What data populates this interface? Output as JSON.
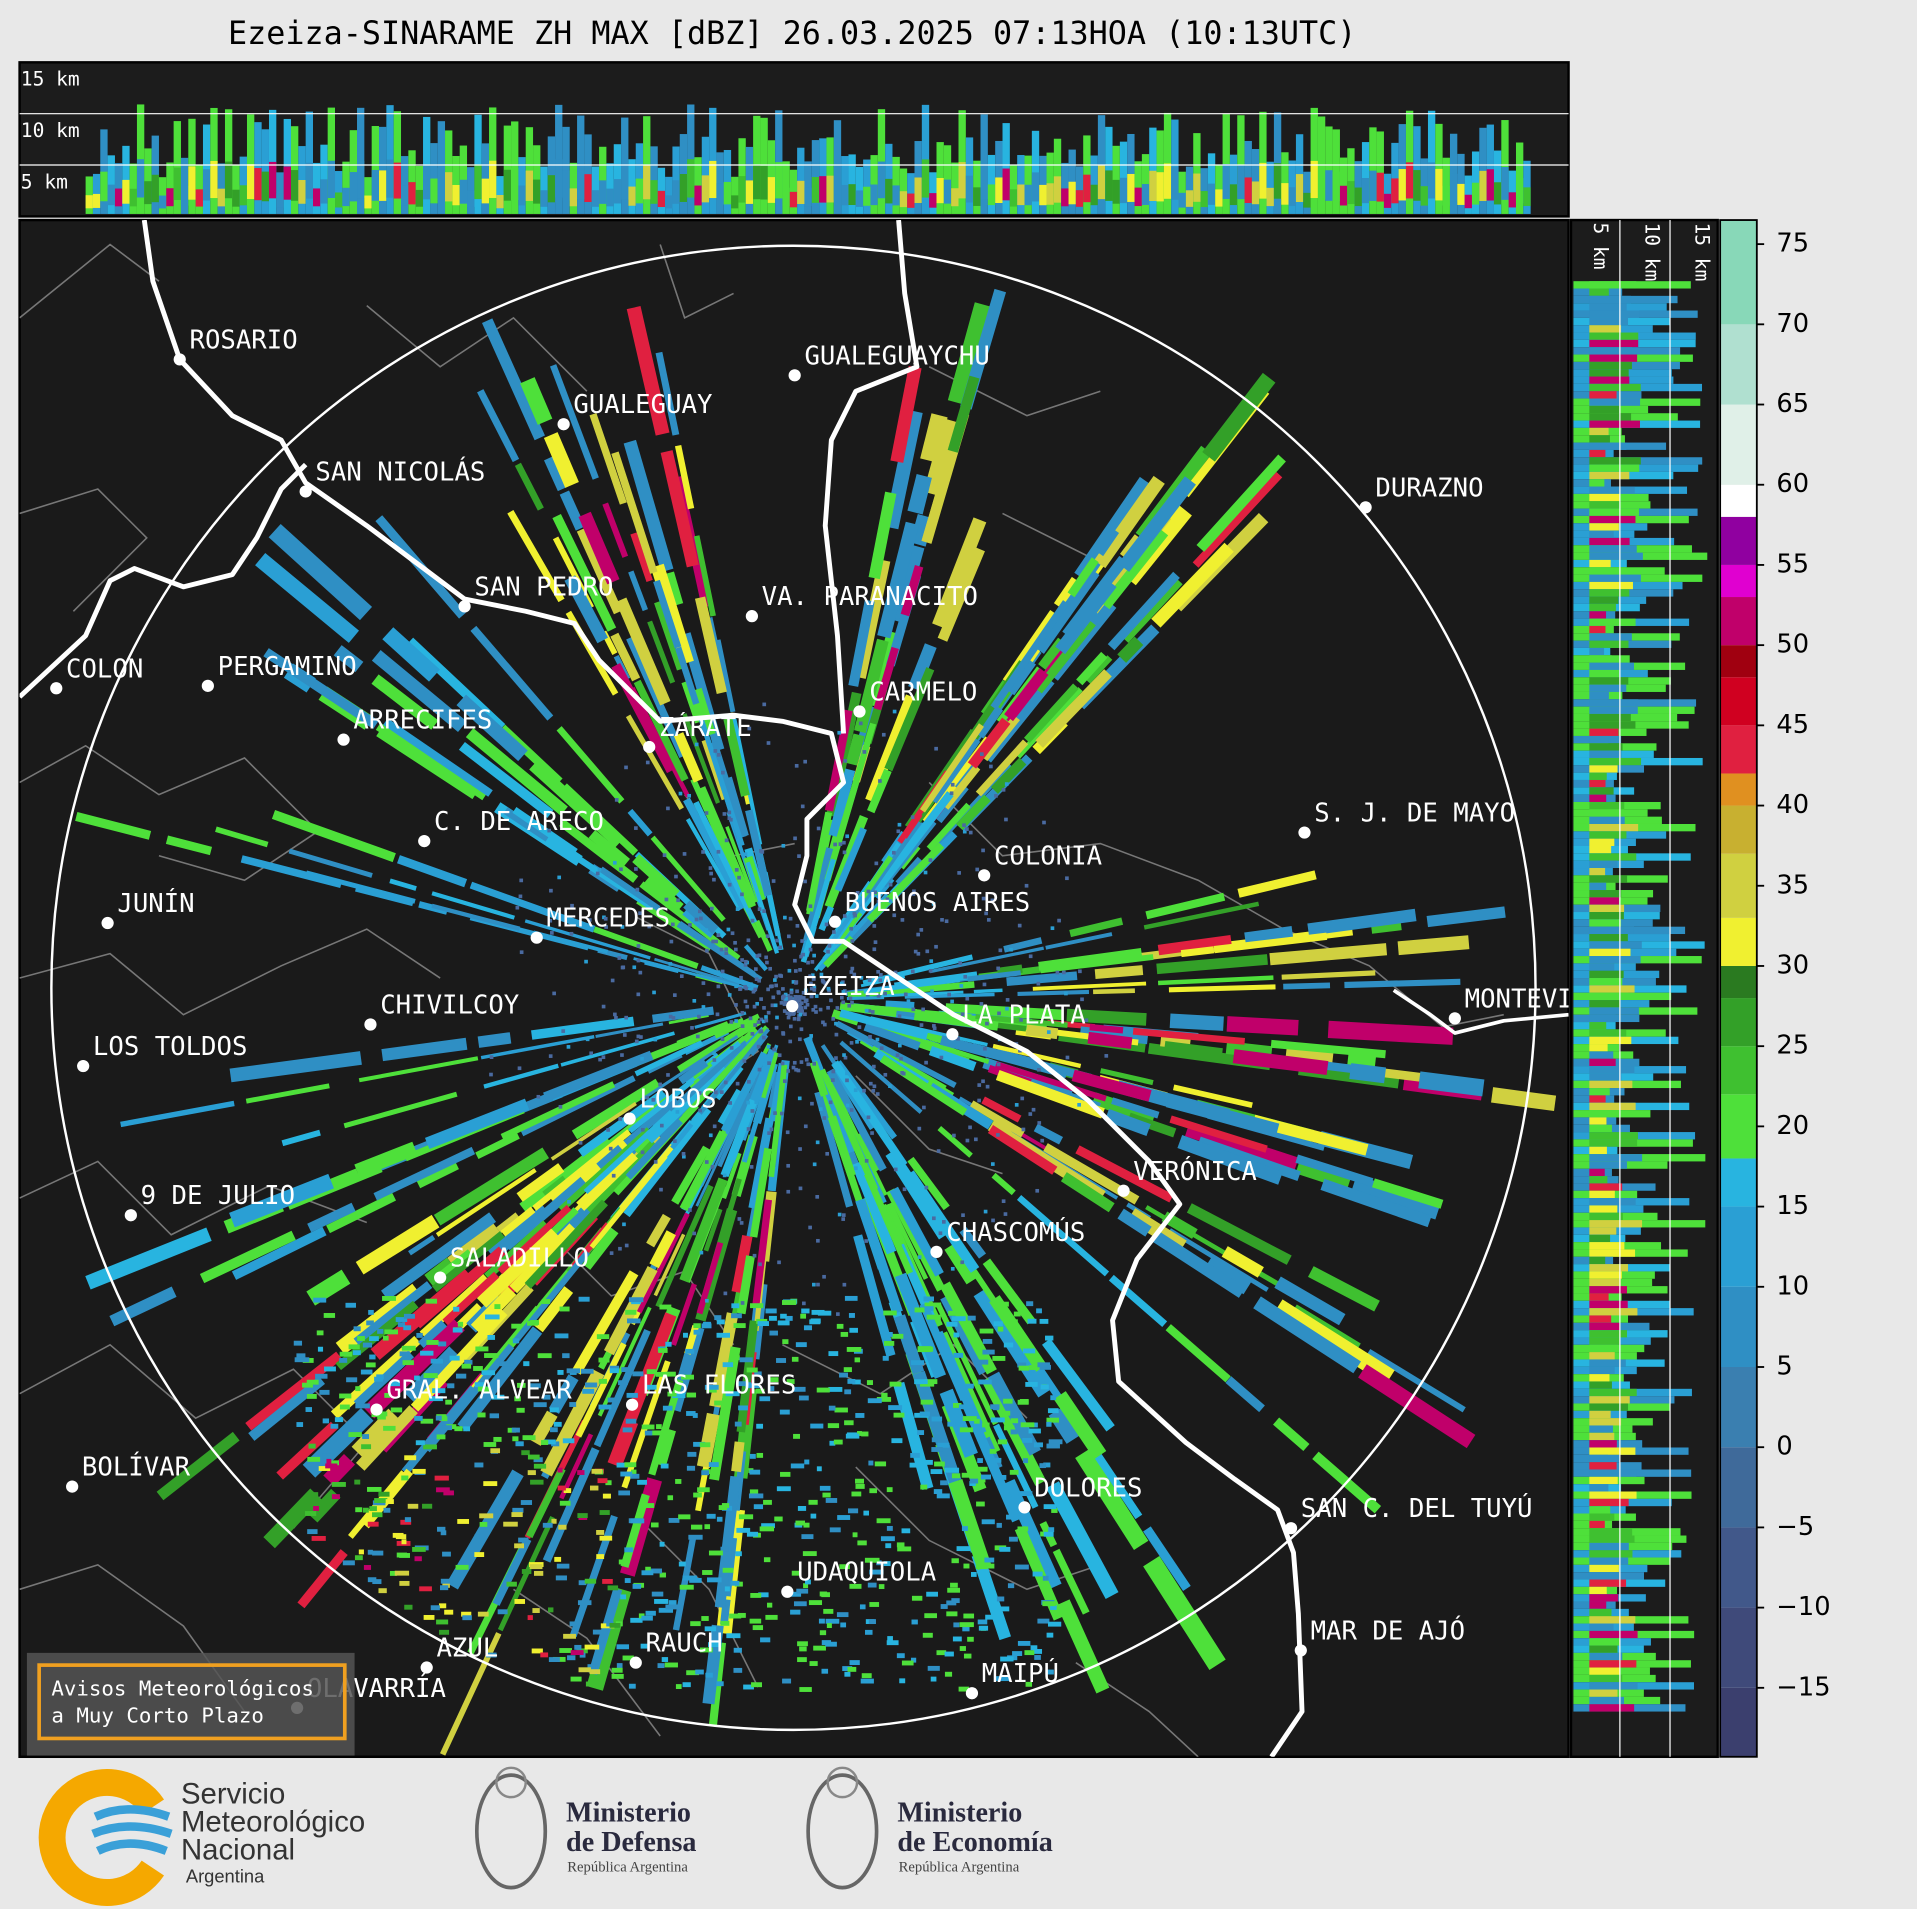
{
  "title": "Ezeiza-SINARAME ZH MAX [dBZ] 26.03.2025 07:13HOA (10:13UTC)",
  "top_panel": {
    "height_labels": [
      "15 km",
      "10 km",
      "5 km"
    ]
  },
  "side_panel": {
    "height_labels": [
      "5 km",
      "10 km",
      "15 km"
    ]
  },
  "cities": [
    "ROSARIO",
    "GUALEGUAYCHU",
    "GUALEGUAY",
    "SAN NICOLÁS",
    "DURAZNO",
    "SAN PEDRO",
    "VA. PARANACITO",
    "COLON",
    "PERGAMINO",
    "CARMELO",
    "ARRECIFES",
    "ZÁRATE",
    "S. J. DE MAYO",
    "C. DE ARECO",
    "COLONIA",
    "BUENOS AIRES",
    "JUNÍN",
    "MERCEDES",
    "EZEIZA",
    "MONTEVIDEO",
    "CHIVILCOY",
    "LA PLATA",
    "LOS TOLDOS",
    "LOBOS",
    "VERÓNICA",
    "9 DE JULIO",
    "CHASCOMÚS",
    "SALADILLO",
    "GRAL. ALVEAR",
    "LAS FLORES",
    "BOLÍVAR",
    "DOLORES",
    "SAN C. DEL TUYÚ",
    "UDAQUIOLA",
    "MAR DE AJÓ",
    "AZUL",
    "RAUCH",
    "OLAVARRÍA",
    "MAIPÚ"
  ],
  "colorbar": {
    "lim": [
      -19.3,
      76.5
    ],
    "ticks": [
      75,
      70,
      65,
      60,
      55,
      50,
      45,
      40,
      35,
      30,
      25,
      20,
      15,
      10,
      5,
      0,
      {
        "value": -5,
        "label": "−5"
      },
      {
        "value": -10,
        "label": "−10"
      },
      {
        "value": -15,
        "label": "−15"
      }
    ],
    "bounds": [
      -19.3,
      -15,
      -10,
      -5,
      0,
      5,
      10,
      15,
      18,
      22,
      25,
      28,
      30,
      33,
      37,
      40,
      42,
      45,
      48,
      50,
      53,
      55,
      58,
      60,
      65,
      70,
      76.5
    ],
    "colors": [
      "#3b3f6e",
      "#3f4a7a",
      "#41588a",
      "#3f6a9a",
      "#3a7fb0",
      "#2f8fc4",
      "#2a9fd4",
      "#28b4e0",
      "#4ee03a",
      "#3fc030",
      "#33a028",
      "#2a7a20",
      "#f0f030",
      "#d0d040",
      "#c8b030",
      "#e09020",
      "#e02040",
      "#d00020",
      "#a00010",
      "#c0006a",
      "#e000d0",
      "#9000a0",
      "#ffffff",
      "#e0f0e8",
      "#b0e0d0",
      "#88d8b8"
    ]
  },
  "notice": [
    "Avisos Meteorológicos",
    "a Muy Corto Plazo"
  ],
  "logos": [
    {
      "lines": [
        "Servicio",
        "Meteorológico",
        "Nacional"
      ],
      "sub": "Argentina"
    },
    {
      "lines": [
        "Ministerio",
        "de Defensa"
      ],
      "sub": "República Argentina"
    },
    {
      "lines": [
        "Ministerio",
        "de Economía"
      ],
      "sub": "República Argentina"
    }
  ]
}
